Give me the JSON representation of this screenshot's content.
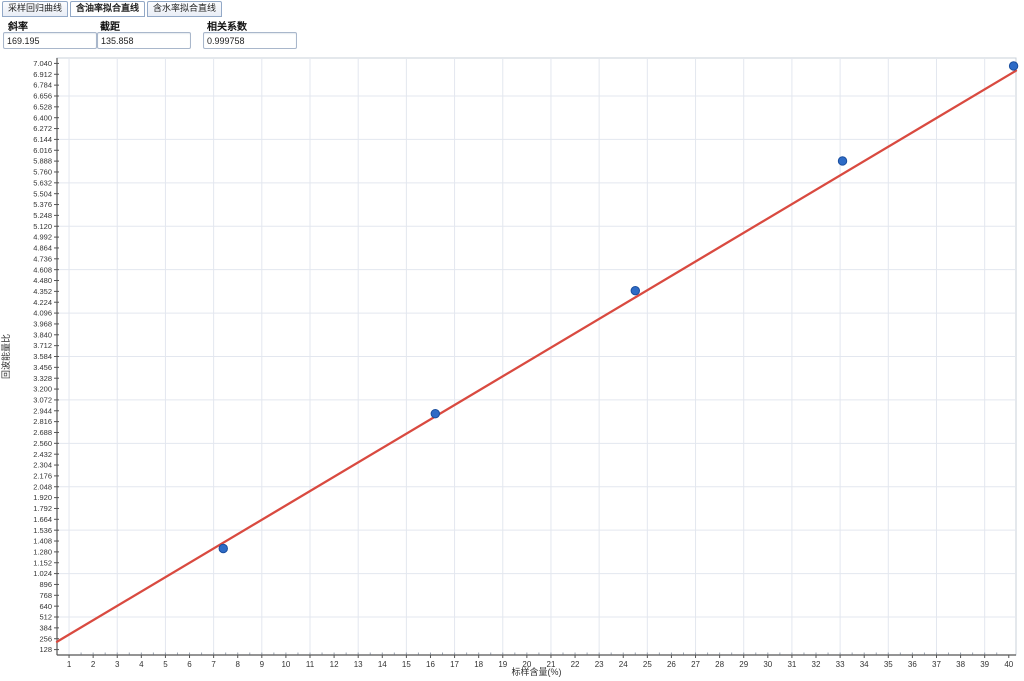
{
  "tabs": [
    {
      "label": "采样回归曲线",
      "active": false
    },
    {
      "label": "含油率拟合直线",
      "active": true
    },
    {
      "label": "含水率拟合直线",
      "active": false
    }
  ],
  "stats": {
    "slope_label": "斜率",
    "slope_value": "169.195",
    "intercept_label": "截距",
    "intercept_value": "135.858",
    "corr_label": "相关系数",
    "corr_value": "0.999758"
  },
  "chart_data": {
    "type": "scatter",
    "title": "",
    "xlabel": "标样含量(%)",
    "ylabel": "回波能量比",
    "xlim": [
      0.5,
      40.3
    ],
    "ylim": [
      64,
      7104
    ],
    "grid": true,
    "legend": "none",
    "x_ticks": [
      "1",
      "2",
      "3",
      "4",
      "5",
      "6",
      "7",
      "8",
      "9",
      "10",
      "11",
      "12",
      "13",
      "14",
      "15",
      "16",
      "17",
      "18",
      "19",
      "20",
      "21",
      "22",
      "23",
      "24",
      "25",
      "26",
      "27",
      "28",
      "29",
      "30",
      "31",
      "32",
      "33",
      "34",
      "35",
      "36",
      "37",
      "38",
      "39",
      "40"
    ],
    "y_ticks": {
      "top": 7040,
      "step": 128,
      "labels": [
        "7.040",
        "6.912",
        "6.784",
        "6.656",
        "6.528",
        "6.400",
        "6.272",
        "6.144",
        "6.016",
        "5.888",
        "5.760",
        "5.632",
        "5.504",
        "5.376",
        "5.248",
        "5.120",
        "4.992",
        "4.864",
        "4.736",
        "4.608",
        "4.480",
        "4.352",
        "4.224",
        "4.096",
        "3.968",
        "3.840",
        "3.712",
        "3.584",
        "3.456",
        "3.328",
        "3.200",
        "3.072",
        "2.944",
        "2.816",
        "2.688",
        "2.560",
        "2.432",
        "2.304",
        "2.176",
        "2.048",
        "1.920",
        "1.792",
        "1.664",
        "1.536",
        "1.408",
        "1.280",
        "1.152",
        "1.024",
        "896",
        "768",
        "640",
        "512",
        "384",
        "256",
        "128"
      ]
    },
    "points": [
      {
        "x": 7.4,
        "y": 1320
      },
      {
        "x": 16.2,
        "y": 2910
      },
      {
        "x": 24.5,
        "y": 4360
      },
      {
        "x": 33.1,
        "y": 5890
      },
      {
        "x": 40.2,
        "y": 7010
      }
    ],
    "fit_line": {
      "slope": 169.195,
      "intercept": 135.858
    },
    "colors": {
      "line": "#d94a40",
      "point": "#2e6bc6",
      "point_edge": "#1a4e9e",
      "grid": "#e3e7ef",
      "frame": "#c9d0da",
      "axis": "#555555",
      "tick_text": "#333333"
    }
  }
}
